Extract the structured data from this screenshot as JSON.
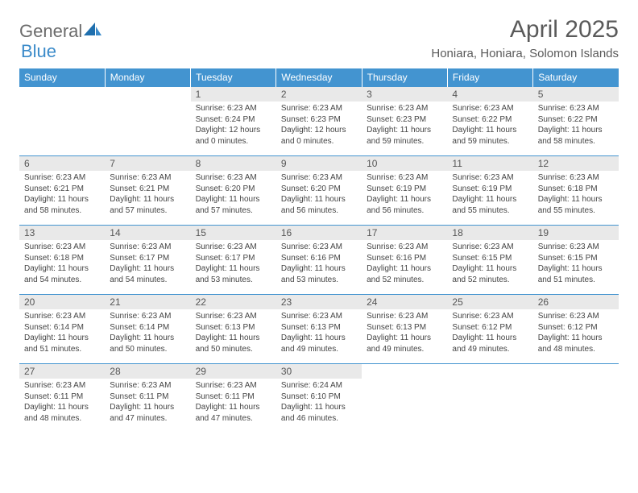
{
  "logo": {
    "general": "General",
    "blue": "Blue"
  },
  "title": "April 2025",
  "location": "Honiara, Honiara, Solomon Islands",
  "colors": {
    "header_bg": "#4394d0",
    "header_text": "#ffffff",
    "daynum_bg": "#e9e9e9",
    "border": "#4394d0",
    "logo_gray": "#6b6b6b",
    "logo_blue": "#3a8ac9"
  },
  "weekdays": [
    "Sunday",
    "Monday",
    "Tuesday",
    "Wednesday",
    "Thursday",
    "Friday",
    "Saturday"
  ],
  "weeks": [
    [
      {
        "n": "",
        "sr": "",
        "ss": "",
        "dl": "",
        "empty": true
      },
      {
        "n": "",
        "sr": "",
        "ss": "",
        "dl": "",
        "empty": true
      },
      {
        "n": "1",
        "sr": "Sunrise: 6:23 AM",
        "ss": "Sunset: 6:24 PM",
        "dl": "Daylight: 12 hours and 0 minutes."
      },
      {
        "n": "2",
        "sr": "Sunrise: 6:23 AM",
        "ss": "Sunset: 6:23 PM",
        "dl": "Daylight: 12 hours and 0 minutes."
      },
      {
        "n": "3",
        "sr": "Sunrise: 6:23 AM",
        "ss": "Sunset: 6:23 PM",
        "dl": "Daylight: 11 hours and 59 minutes."
      },
      {
        "n": "4",
        "sr": "Sunrise: 6:23 AM",
        "ss": "Sunset: 6:22 PM",
        "dl": "Daylight: 11 hours and 59 minutes."
      },
      {
        "n": "5",
        "sr": "Sunrise: 6:23 AM",
        "ss": "Sunset: 6:22 PM",
        "dl": "Daylight: 11 hours and 58 minutes."
      }
    ],
    [
      {
        "n": "6",
        "sr": "Sunrise: 6:23 AM",
        "ss": "Sunset: 6:21 PM",
        "dl": "Daylight: 11 hours and 58 minutes."
      },
      {
        "n": "7",
        "sr": "Sunrise: 6:23 AM",
        "ss": "Sunset: 6:21 PM",
        "dl": "Daylight: 11 hours and 57 minutes."
      },
      {
        "n": "8",
        "sr": "Sunrise: 6:23 AM",
        "ss": "Sunset: 6:20 PM",
        "dl": "Daylight: 11 hours and 57 minutes."
      },
      {
        "n": "9",
        "sr": "Sunrise: 6:23 AM",
        "ss": "Sunset: 6:20 PM",
        "dl": "Daylight: 11 hours and 56 minutes."
      },
      {
        "n": "10",
        "sr": "Sunrise: 6:23 AM",
        "ss": "Sunset: 6:19 PM",
        "dl": "Daylight: 11 hours and 56 minutes."
      },
      {
        "n": "11",
        "sr": "Sunrise: 6:23 AM",
        "ss": "Sunset: 6:19 PM",
        "dl": "Daylight: 11 hours and 55 minutes."
      },
      {
        "n": "12",
        "sr": "Sunrise: 6:23 AM",
        "ss": "Sunset: 6:18 PM",
        "dl": "Daylight: 11 hours and 55 minutes."
      }
    ],
    [
      {
        "n": "13",
        "sr": "Sunrise: 6:23 AM",
        "ss": "Sunset: 6:18 PM",
        "dl": "Daylight: 11 hours and 54 minutes."
      },
      {
        "n": "14",
        "sr": "Sunrise: 6:23 AM",
        "ss": "Sunset: 6:17 PM",
        "dl": "Daylight: 11 hours and 54 minutes."
      },
      {
        "n": "15",
        "sr": "Sunrise: 6:23 AM",
        "ss": "Sunset: 6:17 PM",
        "dl": "Daylight: 11 hours and 53 minutes."
      },
      {
        "n": "16",
        "sr": "Sunrise: 6:23 AM",
        "ss": "Sunset: 6:16 PM",
        "dl": "Daylight: 11 hours and 53 minutes."
      },
      {
        "n": "17",
        "sr": "Sunrise: 6:23 AM",
        "ss": "Sunset: 6:16 PM",
        "dl": "Daylight: 11 hours and 52 minutes."
      },
      {
        "n": "18",
        "sr": "Sunrise: 6:23 AM",
        "ss": "Sunset: 6:15 PM",
        "dl": "Daylight: 11 hours and 52 minutes."
      },
      {
        "n": "19",
        "sr": "Sunrise: 6:23 AM",
        "ss": "Sunset: 6:15 PM",
        "dl": "Daylight: 11 hours and 51 minutes."
      }
    ],
    [
      {
        "n": "20",
        "sr": "Sunrise: 6:23 AM",
        "ss": "Sunset: 6:14 PM",
        "dl": "Daylight: 11 hours and 51 minutes."
      },
      {
        "n": "21",
        "sr": "Sunrise: 6:23 AM",
        "ss": "Sunset: 6:14 PM",
        "dl": "Daylight: 11 hours and 50 minutes."
      },
      {
        "n": "22",
        "sr": "Sunrise: 6:23 AM",
        "ss": "Sunset: 6:13 PM",
        "dl": "Daylight: 11 hours and 50 minutes."
      },
      {
        "n": "23",
        "sr": "Sunrise: 6:23 AM",
        "ss": "Sunset: 6:13 PM",
        "dl": "Daylight: 11 hours and 49 minutes."
      },
      {
        "n": "24",
        "sr": "Sunrise: 6:23 AM",
        "ss": "Sunset: 6:13 PM",
        "dl": "Daylight: 11 hours and 49 minutes."
      },
      {
        "n": "25",
        "sr": "Sunrise: 6:23 AM",
        "ss": "Sunset: 6:12 PM",
        "dl": "Daylight: 11 hours and 49 minutes."
      },
      {
        "n": "26",
        "sr": "Sunrise: 6:23 AM",
        "ss": "Sunset: 6:12 PM",
        "dl": "Daylight: 11 hours and 48 minutes."
      }
    ],
    [
      {
        "n": "27",
        "sr": "Sunrise: 6:23 AM",
        "ss": "Sunset: 6:11 PM",
        "dl": "Daylight: 11 hours and 48 minutes."
      },
      {
        "n": "28",
        "sr": "Sunrise: 6:23 AM",
        "ss": "Sunset: 6:11 PM",
        "dl": "Daylight: 11 hours and 47 minutes."
      },
      {
        "n": "29",
        "sr": "Sunrise: 6:23 AM",
        "ss": "Sunset: 6:11 PM",
        "dl": "Daylight: 11 hours and 47 minutes."
      },
      {
        "n": "30",
        "sr": "Sunrise: 6:24 AM",
        "ss": "Sunset: 6:10 PM",
        "dl": "Daylight: 11 hours and 46 minutes."
      },
      {
        "n": "",
        "sr": "",
        "ss": "",
        "dl": "",
        "empty": true
      },
      {
        "n": "",
        "sr": "",
        "ss": "",
        "dl": "",
        "empty": true
      },
      {
        "n": "",
        "sr": "",
        "ss": "",
        "dl": "",
        "empty": true
      }
    ]
  ]
}
